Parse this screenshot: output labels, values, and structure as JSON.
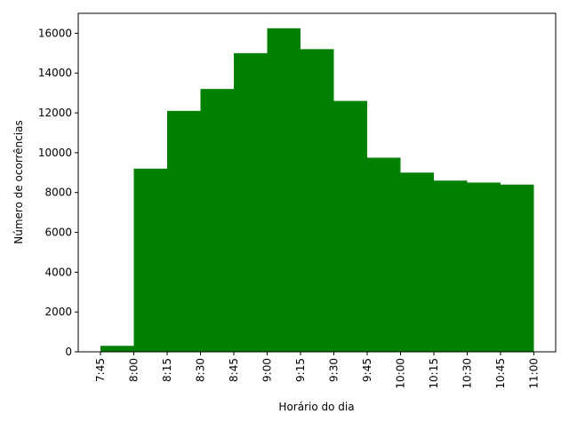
{
  "chart_data": {
    "type": "bar",
    "title": "",
    "xlabel": "Horário do dia",
    "ylabel": "Número de ocorrências",
    "categories": [
      "7:45",
      "8:00",
      "8:15",
      "8:30",
      "8:45",
      "9:00",
      "9:15",
      "9:30",
      "9:45",
      "10:00",
      "10:15",
      "10:30",
      "10:45"
    ],
    "x_ticks": [
      "7:45",
      "8:00",
      "8:15",
      "8:30",
      "8:45",
      "9:00",
      "9:15",
      "9:30",
      "9:45",
      "10:00",
      "10:15",
      "10:30",
      "10:45",
      "11:00"
    ],
    "values": [
      300,
      9200,
      12100,
      13200,
      15000,
      16250,
      15200,
      12600,
      9750,
      9000,
      8600,
      8500,
      8400
    ],
    "y_ticks": [
      0,
      2000,
      4000,
      6000,
      8000,
      10000,
      12000,
      14000,
      16000
    ],
    "ylim": [
      0,
      17000
    ],
    "bar_color": "#008000",
    "grid": false,
    "legend": "none"
  }
}
